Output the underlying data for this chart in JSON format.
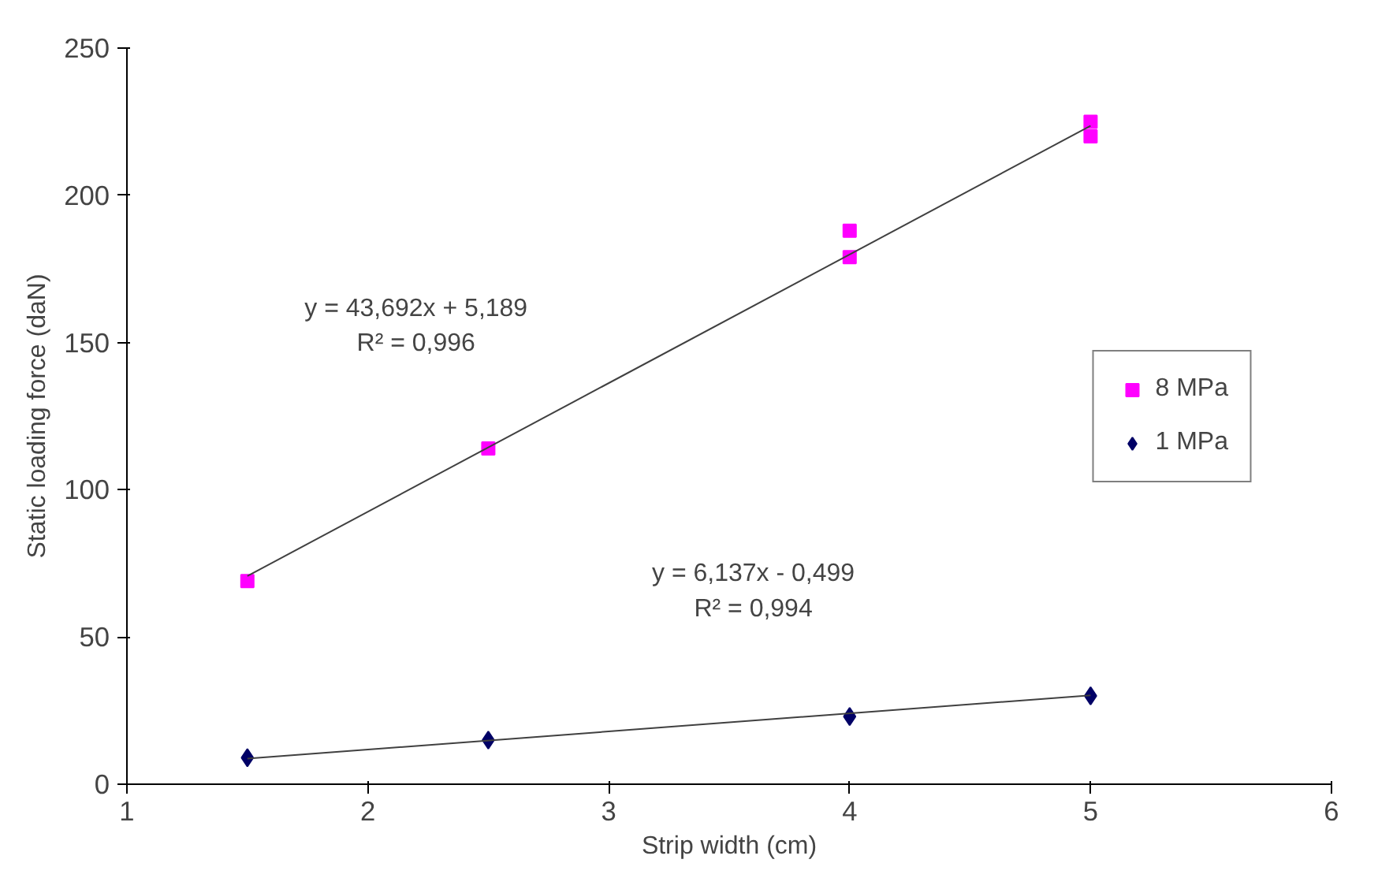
{
  "chart_data": {
    "type": "scatter",
    "xlabel": "Strip width (cm)",
    "ylabel": "Static loading force (daN)",
    "xlim": [
      1,
      6
    ],
    "xticks": [
      1,
      2,
      3,
      4,
      5,
      6
    ],
    "ylim": [
      0,
      250
    ],
    "yticks": [
      0,
      50,
      100,
      150,
      200,
      250
    ],
    "grid": false,
    "legend": "right",
    "series": [
      {
        "name": "8 MPa",
        "color": "#ff00ff",
        "marker": "square",
        "x": [
          1.5,
          2.5,
          4,
          4,
          5,
          5
        ],
        "values": [
          69,
          114,
          179,
          188,
          220,
          225
        ]
      },
      {
        "name": "1 MPa",
        "color": "#000066",
        "marker": "diamond",
        "x": [
          1.5,
          2.5,
          4,
          5
        ],
        "values": [
          9,
          15,
          23,
          30
        ]
      },
      {
        "type": "line",
        "color": "#404040",
        "marker": "none",
        "x": [
          1.5,
          5
        ],
        "values": [
          70.7,
          223.6
        ]
      },
      {
        "type": "line",
        "color": "#404040",
        "marker": "none",
        "x": [
          1.5,
          5
        ],
        "values": [
          8.7,
          30.2
        ]
      }
    ],
    "annotations": [
      "y = 43,692x + 5,189\nR² = 0,996",
      "y = 6,137x - 0,499\nR² = 0,994"
    ]
  }
}
